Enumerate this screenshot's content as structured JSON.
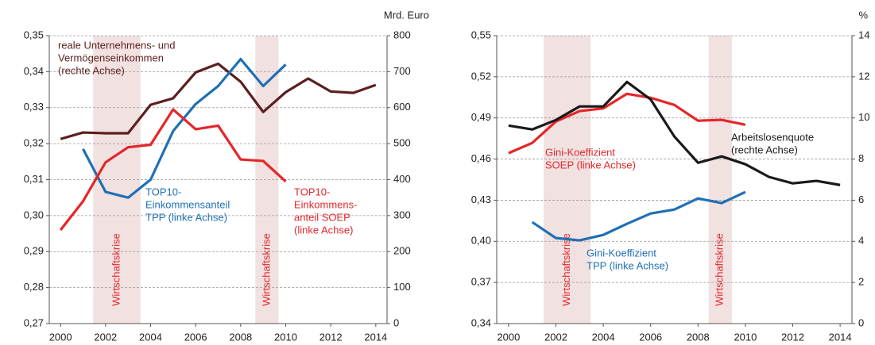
{
  "chart_data": [
    {
      "type": "line",
      "y2_label": "Mrd. Euro",
      "x": [
        2000,
        2001,
        2002,
        2003,
        2004,
        2005,
        2006,
        2007,
        2008,
        2009,
        2010,
        2011,
        2012,
        2013,
        2014
      ],
      "xlim": [
        1999.5,
        2014.5
      ],
      "xticks": [
        2000,
        2002,
        2004,
        2006,
        2008,
        2010,
        2012,
        2014
      ],
      "ylim": [
        0.27,
        0.35
      ],
      "yticks": [
        {
          "value": 0.27,
          "label": "0,27"
        },
        {
          "value": 0.28,
          "label": "0,28"
        },
        {
          "value": 0.29,
          "label": "0,29"
        },
        {
          "value": 0.3,
          "label": "0,30"
        },
        {
          "value": 0.31,
          "label": "0,31"
        },
        {
          "value": 0.32,
          "label": "0,32"
        },
        {
          "value": 0.33,
          "label": "0,33"
        },
        {
          "value": 0.34,
          "label": "0,34"
        },
        {
          "value": 0.35,
          "label": "0,35"
        }
      ],
      "y2lim": [
        0,
        800
      ],
      "y2ticks": [
        0,
        100,
        200,
        300,
        400,
        500,
        600,
        700,
        800
      ],
      "grid": true,
      "spans": [
        {
          "start": 2001.45,
          "end": 2003.55,
          "label": "Wirtschaftskrise",
          "color": "#f2e1e1"
        },
        {
          "start": 2008.65,
          "end": 2009.68,
          "label": "Wirtschaftskrise",
          "color": "#f2e1e1"
        }
      ],
      "series": [
        {
          "label": [
            "reale Unternehmens- und",
            "Vermögenseinkommen",
            "(rechte Achse)"
          ],
          "color": "#5b1f1f",
          "axis": "y2",
          "values": [
            513,
            531,
            529,
            529,
            608,
            626,
            698,
            722,
            672,
            588,
            643,
            681,
            645,
            641,
            663
          ]
        },
        {
          "label": [
            "TOP10-",
            "Einkommensanteil",
            "TPP (linke Achse)"
          ],
          "color": "#1f6fb4",
          "axis": "y",
          "values": [
            null,
            0.3185,
            0.3066,
            0.305,
            0.31,
            0.3235,
            0.331,
            0.336,
            0.3435,
            0.336,
            0.342,
            null,
            null,
            null,
            null
          ]
        },
        {
          "label": [
            "TOP10-",
            "Einkommens-",
            "anteil SOEP",
            "(linke Achse)"
          ],
          "color": "#e52629",
          "axis": "y",
          "values": [
            0.296,
            0.304,
            0.3148,
            0.319,
            0.3197,
            0.3295,
            0.324,
            0.325,
            0.3156,
            0.3152,
            0.3095,
            null,
            null,
            null,
            null
          ]
        }
      ]
    },
    {
      "type": "line",
      "y2_label": "%",
      "x": [
        2000,
        2001,
        2002,
        2003,
        2004,
        2005,
        2006,
        2007,
        2008,
        2009,
        2010,
        2011,
        2012,
        2013,
        2014
      ],
      "xlim": [
        1999.5,
        2014.5
      ],
      "xticks": [
        2000,
        2002,
        2004,
        2006,
        2008,
        2010,
        2012,
        2014
      ],
      "ylim": [
        0.34,
        0.55
      ],
      "yticks": [
        {
          "value": 0.34,
          "label": "0,34"
        },
        {
          "value": 0.37,
          "label": "0,37"
        },
        {
          "value": 0.4,
          "label": "0,40"
        },
        {
          "value": 0.43,
          "label": "0,43"
        },
        {
          "value": 0.46,
          "label": "0,46"
        },
        {
          "value": 0.49,
          "label": "0,49"
        },
        {
          "value": 0.52,
          "label": "0,52"
        },
        {
          "value": 0.55,
          "label": "0,55"
        }
      ],
      "y2lim": [
        0,
        14
      ],
      "y2ticks": [
        0,
        2,
        4,
        6,
        8,
        10,
        12,
        14
      ],
      "grid": true,
      "spans": [
        {
          "start": 2001.48,
          "end": 2003.47,
          "label": "Wirtschaftskrise",
          "color": "#f2e1e1"
        },
        {
          "start": 2008.45,
          "end": 2009.43,
          "label": "Wirtschaftskrise",
          "color": "#f2e1e1"
        }
      ],
      "series": [
        {
          "label": [
            "Gini-Koeffizient",
            "SOEP (linke Achse)"
          ],
          "color": "#e52629",
          "axis": "y",
          "values": [
            0.4643,
            0.4718,
            0.4874,
            0.495,
            0.497,
            0.5076,
            0.5047,
            0.4995,
            0.488,
            0.4886,
            0.485,
            null,
            null,
            null,
            null
          ]
        },
        {
          "label": [
            "Arbeitslosenquote",
            "(rechte Achse)"
          ],
          "color": "#1a1a1a",
          "axis": "y2",
          "values": [
            9.63,
            9.44,
            9.9,
            10.56,
            10.56,
            11.75,
            10.9,
            9.1,
            7.82,
            8.13,
            7.75,
            7.13,
            6.82,
            6.94,
            6.74
          ]
        },
        {
          "label": [
            "Gini-Koeffizient",
            "TPP (linke Achse)"
          ],
          "color": "#1f6fb4",
          "axis": "y",
          "values": [
            null,
            0.414,
            0.4024,
            0.4007,
            0.4047,
            0.4128,
            0.4203,
            0.4232,
            0.4313,
            0.4279,
            0.436,
            null,
            null,
            null,
            null
          ]
        }
      ]
    }
  ]
}
